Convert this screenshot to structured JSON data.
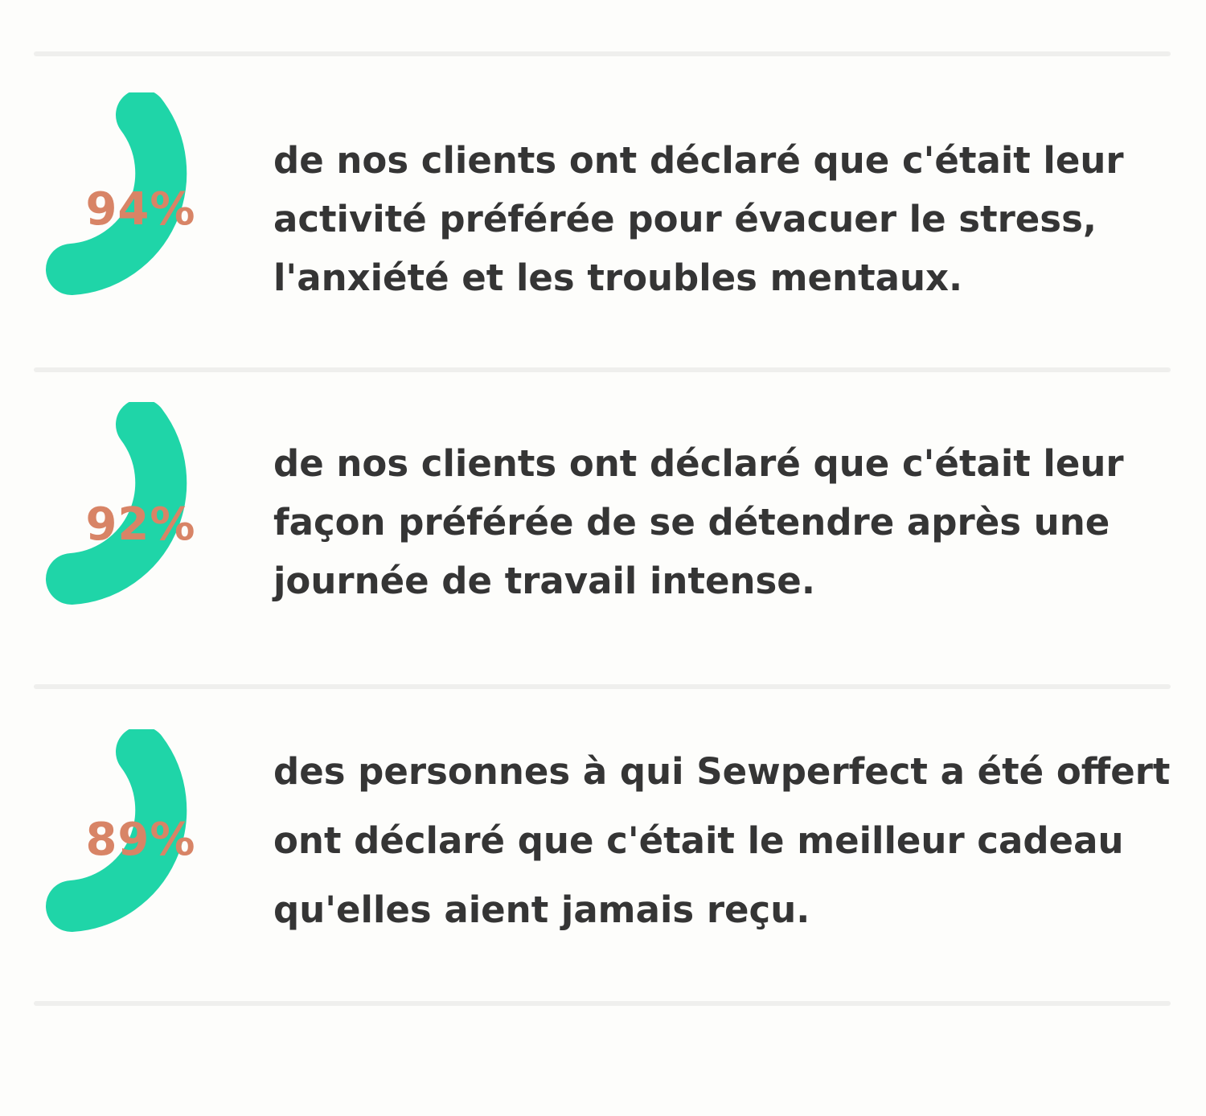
{
  "colors": {
    "background": "#fdfdfb",
    "ring": "#1fd5a8",
    "percent": "#d88466",
    "text": "#353535",
    "divider": "#efefed"
  },
  "stats": [
    {
      "percent": "94%",
      "value": 94,
      "lines": [
        "de nos clients ont déclaré que c'était leur",
        "activité préférée pour évacuer le stress,",
        "l'anxiété et les troubles mentaux."
      ]
    },
    {
      "percent": "92%",
      "value": 92,
      "lines": [
        "de nos clients ont déclaré que c'était leur",
        "façon préférée de se détendre après une",
        "journée de travail intense."
      ]
    },
    {
      "percent": "89%",
      "value": 89,
      "lines": [
        "des personnes à qui Sewperfect a été offert",
        "ont déclaré que c'était le meilleur cadeau",
        "qu'elles aient jamais reçu."
      ]
    }
  ]
}
